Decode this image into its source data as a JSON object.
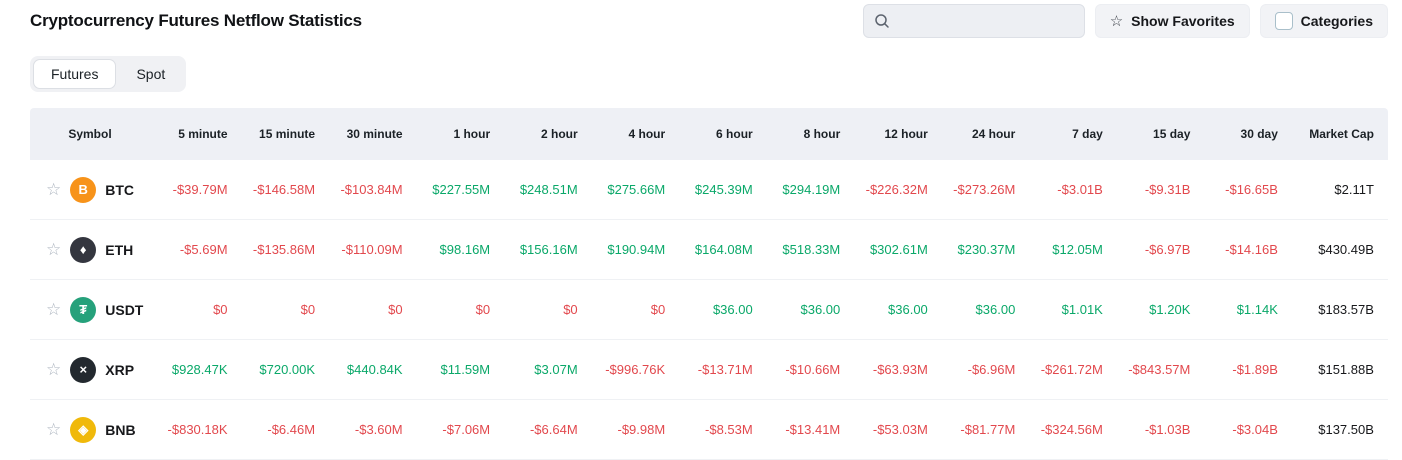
{
  "header": {
    "title": "Cryptocurrency Futures Netflow Statistics",
    "search_placeholder": "",
    "search_value": "",
    "show_favorites": "Show Favorites",
    "categories": "Categories"
  },
  "tabs": [
    {
      "label": "Futures",
      "active": true
    },
    {
      "label": "Spot",
      "active": false
    }
  ],
  "colors": {
    "positive": "#0aa869",
    "negative": "#e2484d",
    "header_bg": "#eef0f5"
  },
  "icons": {
    "search": "magnifier-icon",
    "favorite": "star-outline-icon",
    "categories_box": "checkbox-icon"
  },
  "table": {
    "columns": [
      "Symbol",
      "5 minute",
      "15 minute",
      "30 minute",
      "1 hour",
      "2 hour",
      "4 hour",
      "6 hour",
      "8 hour",
      "12 hour",
      "24 hour",
      "7 day",
      "15 day",
      "30 day",
      "Market Cap"
    ],
    "rows": [
      {
        "symbol": "BTC",
        "icon": {
          "name": "btc-coin-icon",
          "bg": "#f7931a",
          "glyph": "B"
        },
        "values": [
          "-$39.79M",
          "-$146.58M",
          "-$103.84M",
          "$227.55M",
          "$248.51M",
          "$275.66M",
          "$245.39M",
          "$294.19M",
          "-$226.32M",
          "-$273.26M",
          "-$3.01B",
          "-$9.31B",
          "-$16.65B"
        ],
        "signs": [
          "neg",
          "neg",
          "neg",
          "pos",
          "pos",
          "pos",
          "pos",
          "pos",
          "neg",
          "neg",
          "neg",
          "neg",
          "neg"
        ],
        "market_cap": "$2.11T"
      },
      {
        "symbol": "ETH",
        "icon": {
          "name": "eth-coin-icon",
          "bg": "#34363f",
          "glyph": "♦"
        },
        "values": [
          "-$5.69M",
          "-$135.86M",
          "-$110.09M",
          "$98.16M",
          "$156.16M",
          "$190.94M",
          "$164.08M",
          "$518.33M",
          "$302.61M",
          "$230.37M",
          "$12.05M",
          "-$6.97B",
          "-$14.16B"
        ],
        "signs": [
          "neg",
          "neg",
          "neg",
          "pos",
          "pos",
          "pos",
          "pos",
          "pos",
          "pos",
          "pos",
          "pos",
          "neg",
          "neg"
        ],
        "market_cap": "$430.49B"
      },
      {
        "symbol": "USDT",
        "icon": {
          "name": "usdt-coin-icon",
          "bg": "#26a17b",
          "glyph": "₮"
        },
        "values": [
          "$0",
          "$0",
          "$0",
          "$0",
          "$0",
          "$0",
          "$36.00",
          "$36.00",
          "$36.00",
          "$36.00",
          "$1.01K",
          "$1.20K",
          "$1.14K"
        ],
        "signs": [
          "neg",
          "neg",
          "neg",
          "neg",
          "neg",
          "neg",
          "pos",
          "pos",
          "pos",
          "pos",
          "pos",
          "pos",
          "pos"
        ],
        "market_cap": "$183.57B"
      },
      {
        "symbol": "XRP",
        "icon": {
          "name": "xrp-coin-icon",
          "bg": "#23292f",
          "glyph": "×"
        },
        "values": [
          "$928.47K",
          "$720.00K",
          "$440.84K",
          "$11.59M",
          "$3.07M",
          "-$996.76K",
          "-$13.71M",
          "-$10.66M",
          "-$63.93M",
          "-$6.96M",
          "-$261.72M",
          "-$843.57M",
          "-$1.89B"
        ],
        "signs": [
          "pos",
          "pos",
          "pos",
          "pos",
          "pos",
          "neg",
          "neg",
          "neg",
          "neg",
          "neg",
          "neg",
          "neg",
          "neg"
        ],
        "market_cap": "$151.88B"
      },
      {
        "symbol": "BNB",
        "icon": {
          "name": "bnb-coin-icon",
          "bg": "#f0b90b",
          "glyph": "◈"
        },
        "values": [
          "-$830.18K",
          "-$6.46M",
          "-$3.60M",
          "-$7.06M",
          "-$6.64M",
          "-$9.98M",
          "-$8.53M",
          "-$13.41M",
          "-$53.03M",
          "-$81.77M",
          "-$324.56M",
          "-$1.03B",
          "-$3.04B"
        ],
        "signs": [
          "neg",
          "neg",
          "neg",
          "neg",
          "neg",
          "neg",
          "neg",
          "neg",
          "neg",
          "neg",
          "neg",
          "neg",
          "neg"
        ],
        "market_cap": "$137.50B"
      }
    ]
  }
}
